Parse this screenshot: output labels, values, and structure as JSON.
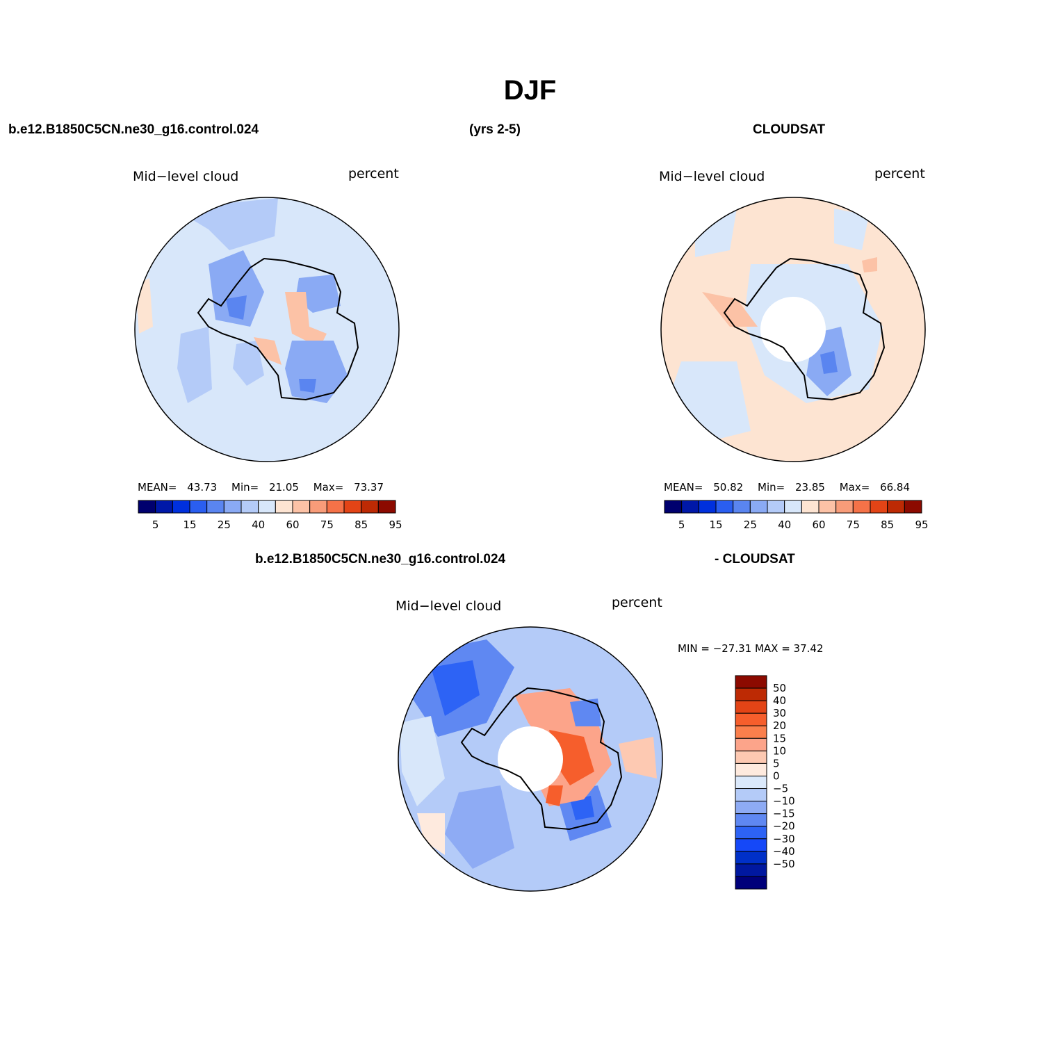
{
  "title": "DJF",
  "header": {
    "left": "b.e12.B1850C5CN.ne30_g16.control.024",
    "center": "(yrs 2-5)",
    "right": "CLOUDSAT"
  },
  "diff_header": {
    "left": "b.e12.B1850C5CN.ne30_g16.control.024",
    "right": "- CLOUDSAT"
  },
  "panels": [
    {
      "id": "model",
      "variable": "Mid−level cloud",
      "units": "percent",
      "stats": {
        "mean_label": "MEAN=",
        "mean": "43.73",
        "min_label": "Min=",
        "min": "21.05",
        "max_label": "Max=",
        "max": "73.37"
      }
    },
    {
      "id": "cloudsat",
      "variable": "Mid−level cloud",
      "units": "percent",
      "stats": {
        "mean_label": "MEAN=",
        "mean": "50.82",
        "min_label": "Min=",
        "min": "23.85",
        "max_label": "Max=",
        "max": "66.84"
      }
    },
    {
      "id": "difference",
      "variable": "Mid−level cloud",
      "units": "percent",
      "minmax": "MIN = −27.31  MAX =   37.42"
    }
  ],
  "colorbar_abs": {
    "colors": [
      "#00006e",
      "#0018a8",
      "#0030dd",
      "#2a5ef0",
      "#5a85f0",
      "#8aaaf4",
      "#b4cbf8",
      "#d8e7fa",
      "#fde4d2",
      "#fcc2a6",
      "#f89c79",
      "#f57248",
      "#e34416",
      "#bd2a04",
      "#8c0a00"
    ],
    "labels": [
      "5",
      "15",
      "25",
      "40",
      "60",
      "75",
      "85",
      "95"
    ]
  },
  "colorbar_diff": {
    "colors": [
      "#8c0a00",
      "#bd2a04",
      "#e34416",
      "#f65e2c",
      "#fb7f4c",
      "#fca48a",
      "#fdc9b2",
      "#feeade",
      "#dbe9fb",
      "#b4cbf8",
      "#8eabf4",
      "#5f88f2",
      "#2d63f5",
      "#1548f8",
      "#0030c8",
      "#0018a0",
      "#00007a"
    ],
    "labels": [
      "50",
      "40",
      "30",
      "20",
      "15",
      "10",
      "5",
      "0",
      "−5",
      "−10",
      "−15",
      "−20",
      "−30",
      "−40",
      "−50"
    ]
  }
}
